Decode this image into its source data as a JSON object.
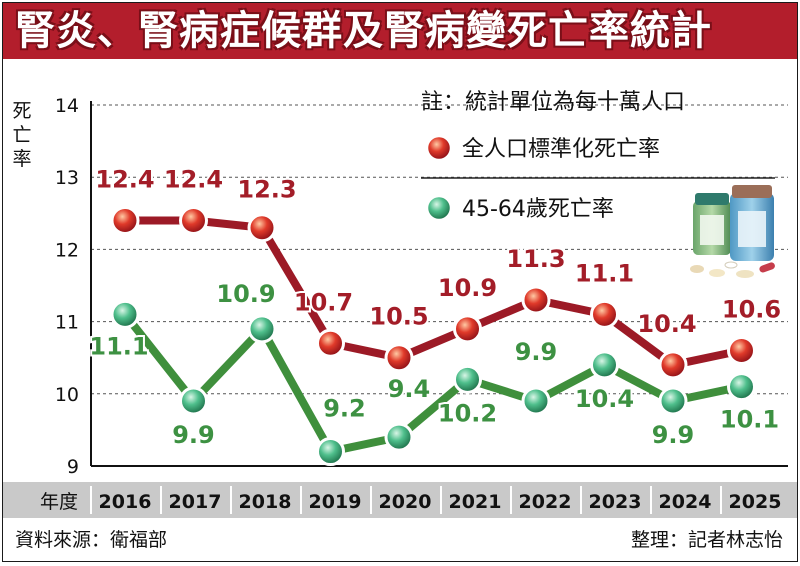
{
  "title": "腎炎、腎病症候群及腎病變死亡率統計",
  "footer": {
    "source": "資料來源：衛福部",
    "editor": "整理：記者林志怡"
  },
  "chart_data": {
    "type": "line",
    "x_header": "年度",
    "categories": [
      "2016",
      "2017",
      "2018",
      "2019",
      "2020",
      "2021",
      "2022",
      "2023",
      "2024",
      "2025"
    ],
    "ylabel": "死亡率",
    "ylim": [
      9,
      14
    ],
    "yticks": [
      9,
      10,
      11,
      12,
      13,
      14
    ],
    "grid": true,
    "note": "註：統計單位為每十萬人口",
    "legend_position": "top-right",
    "series": [
      {
        "name": "全人口標準化死亡率",
        "color": "#b31e2c",
        "line_color": "#9c1a26",
        "values": [
          12.4,
          12.4,
          12.3,
          10.7,
          10.5,
          10.9,
          11.3,
          11.1,
          10.4,
          10.6
        ]
      },
      {
        "name": "45-64歲死亡率",
        "color": "#3a9a5e",
        "line_color": "#3f8f3c",
        "values": [
          11.1,
          9.9,
          10.9,
          9.2,
          9.4,
          10.2,
          9.9,
          10.4,
          9.9,
          10.1
        ]
      }
    ]
  }
}
